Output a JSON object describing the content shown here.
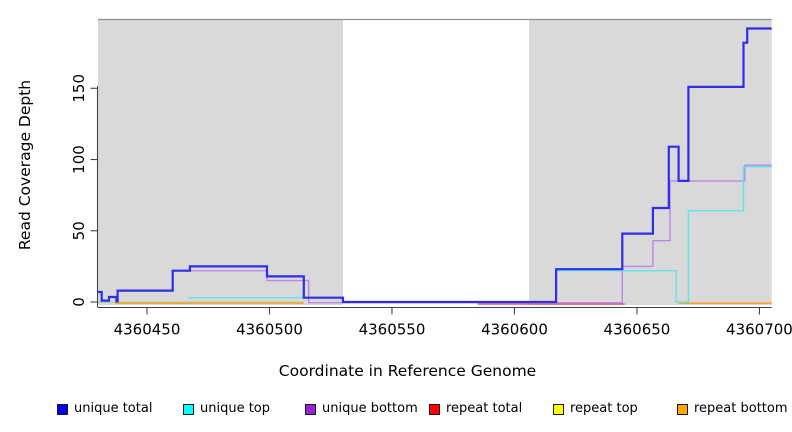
{
  "chart_data": {
    "type": "line",
    "step_mode": "step-after",
    "title": "",
    "xlabel": "Coordinate in Reference Genome",
    "ylabel": "Read Coverage Depth",
    "xlim": [
      4360430,
      4360705
    ],
    "ylim": [
      0,
      198
    ],
    "x_ticks": [
      4360450,
      4360500,
      4360550,
      4360600,
      4360650,
      4360700
    ],
    "y_ticks": [
      0,
      50,
      100,
      150
    ],
    "grid": false,
    "legend_position": "bottom",
    "shade_color": "#d9d9d9",
    "shaded_regions": [
      {
        "from": 4360430,
        "to": 4360530
      },
      {
        "from": 4360606,
        "to": 4360705
      }
    ],
    "series": [
      {
        "name": "repeat top",
        "legend_color": "#ffff00",
        "display_color": "#9cdb9c",
        "segments": [
          [
            [
              4360430,
              0
            ],
            [
              4360514,
              0
            ]
          ]
        ]
      },
      {
        "name": "repeat total",
        "legend_color": "#ff0000",
        "display_color": "#e05a6e",
        "segments": [
          [
            [
              4360585,
              0
            ],
            [
              4360645,
              0
            ]
          ]
        ]
      },
      {
        "name": "repeat bottom",
        "legend_color": "#ffa500",
        "display_color": "#ffa033",
        "segments": [
          [
            [
              4360437,
              0
            ],
            [
              4360514,
              0
            ]
          ],
          [
            [
              4360667,
              0
            ],
            [
              4360705,
              0
            ]
          ]
        ]
      },
      {
        "name": "unique bottom",
        "legend_color": "#9920d8",
        "display_color": "#bd85ec",
        "segments": [
          [
            [
              4360467,
              22
            ],
            [
              4360499,
              15
            ],
            [
              4360516,
              0
            ],
            [
              4360644,
              25
            ],
            [
              4360656.5,
              43
            ],
            [
              4360663.5,
              85
            ],
            [
              4360694,
              96
            ],
            [
              4360705,
              96
            ]
          ]
        ]
      },
      {
        "name": "unique top",
        "legend_color": "#00ffff",
        "display_color": "#5ee4ea",
        "segments": [
          [
            [
              4360467,
              3
            ],
            [
              4360530,
              0
            ],
            [
              4360617,
              22
            ],
            [
              4360666,
              0
            ],
            [
              4360671,
              64
            ],
            [
              4360693.5,
              95
            ],
            [
              4360705,
              95
            ]
          ]
        ]
      },
      {
        "name": "unique total",
        "legend_color": "#0000ee",
        "display_color": "#2e2ee6",
        "segments": [
          [
            [
              4360430,
              7
            ],
            [
              4360431.5,
              1
            ],
            [
              4360434.5,
              3.5
            ],
            [
              4360437.5,
              0.5
            ],
            [
              4360438,
              8
            ],
            [
              4360460.5,
              22
            ],
            [
              4360467.5,
              25
            ],
            [
              4360499,
              18
            ],
            [
              4360514,
              3
            ],
            [
              4360530,
              0
            ],
            [
              4360617,
              23
            ],
            [
              4360644,
              48
            ],
            [
              4360656.5,
              66
            ],
            [
              4360663,
              109
            ],
            [
              4360667,
              85
            ],
            [
              4360671,
              151
            ],
            [
              4360693.5,
              182
            ],
            [
              4360695,
              192
            ],
            [
              4360705,
              192
            ]
          ]
        ]
      }
    ]
  },
  "legend": {
    "items": [
      {
        "label": "unique total",
        "color": "#0000ee"
      },
      {
        "label": "unique top",
        "color": "#00ffff"
      },
      {
        "label": "unique bottom",
        "color": "#9920d8"
      },
      {
        "label": "repeat total",
        "color": "#ff0000"
      },
      {
        "label": "repeat top",
        "color": "#ffff00"
      },
      {
        "label": "repeat bottom",
        "color": "#ffa500"
      }
    ]
  }
}
